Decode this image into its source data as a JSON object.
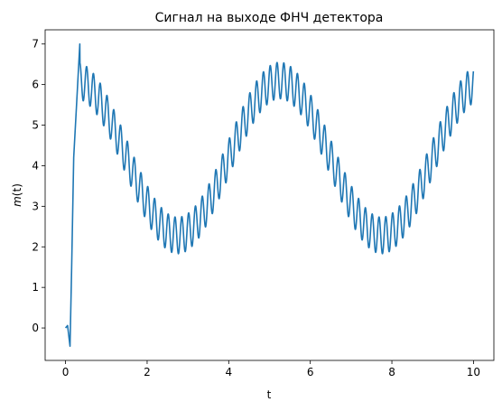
{
  "chart_data": {
    "type": "line",
    "title": "Сигнал на выходе ФНЧ детектора",
    "xlabel": "t",
    "ylabel_base": "m",
    "ylabel_paren": "(t)",
    "xlim": [
      -0.5,
      10.5
    ],
    "ylim": [
      -0.8,
      7.35
    ],
    "xticks": [
      0,
      2,
      4,
      6,
      8,
      10
    ],
    "yticks": [
      0,
      1,
      2,
      3,
      4,
      5,
      6,
      7
    ],
    "grid": false,
    "line_color": "#1f77b4",
    "series": [
      {
        "description_points": [
          [
            0.0,
            0.0
          ],
          [
            0.05,
            0.06
          ],
          [
            0.08,
            -0.2
          ],
          [
            0.11,
            -0.45
          ],
          [
            0.15,
            1.5
          ],
          [
            0.2,
            4.2
          ],
          [
            0.27,
            5.5
          ],
          [
            0.35,
            7.0
          ]
        ],
        "steady_state": {
          "x_start": 0.35,
          "x_end": 10.0,
          "envelope_center_at_max": 6.1,
          "envelope_center_at_min": 2.28,
          "envelope_period": 5.0,
          "envelope_peak_x": 5.25,
          "ripple_amplitude": 0.45,
          "ripple_period": 0.1667
        }
      }
    ]
  }
}
